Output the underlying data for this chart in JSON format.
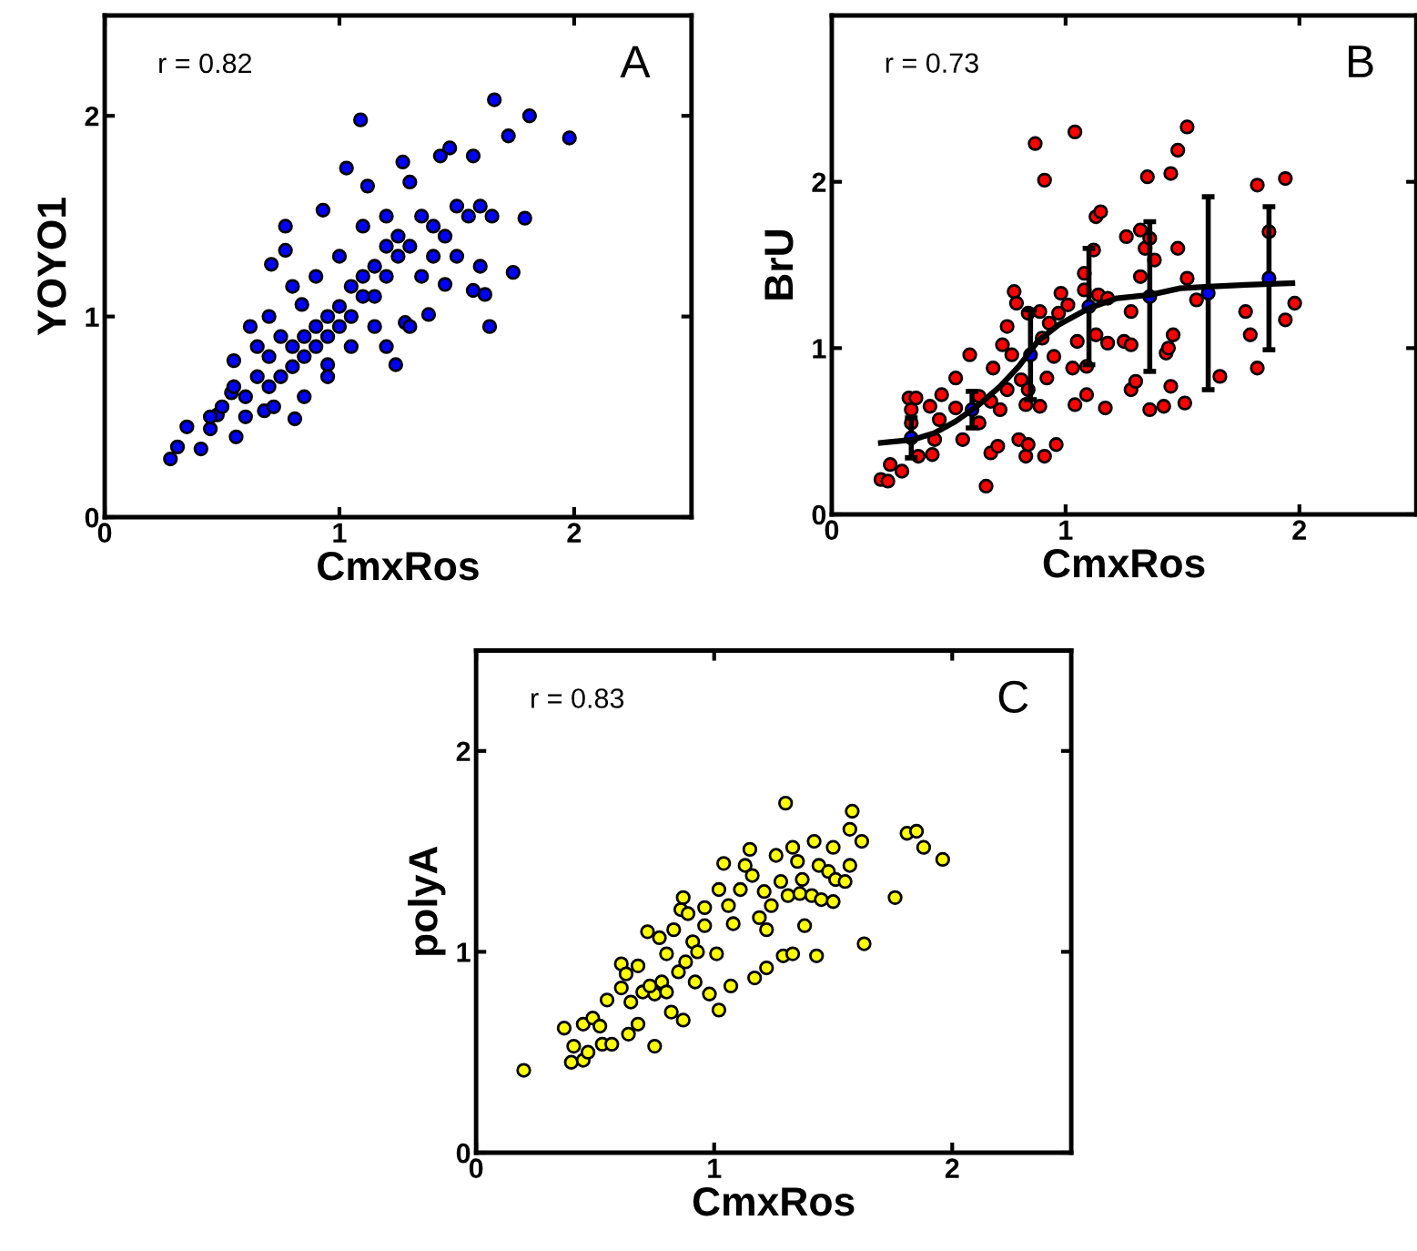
{
  "chart_data": [
    {
      "type": "scatter",
      "xlabel": "CmxRos",
      "ylabel": "YOYO1",
      "annotations": [
        "r = 0.82",
        "A"
      ],
      "xlim": [
        0,
        2.5
      ],
      "ylim": [
        0,
        2.5
      ],
      "xticks": [
        0,
        1,
        2
      ],
      "yticks": [
        0,
        1,
        2
      ],
      "grid": false,
      "marker": "circle",
      "series": [
        {
          "color": "#0000ff",
          "x": [
            0.28,
            0.31,
            0.35,
            0.41,
            0.48,
            0.54,
            0.55,
            0.62,
            0.71,
            0.77,
            0.77,
            0.84,
            0.93,
            1.09,
            1.03,
            1.12,
            1.27,
            1.3,
            1.43,
            1.47,
            1.57,
            1.66,
            1.72,
            1.81,
            1.98,
            1.79,
            1.74,
            1.64,
            1.62,
            1.57,
            1.45,
            1.24,
            1.28,
            1.38,
            0.95,
            0.81,
            0.68,
            0.56,
            0.45,
            0.6,
            0.65,
            0.7,
            0.7,
            0.75,
            0.75,
            0.8,
            0.8,
            0.85,
            0.85,
            0.9,
            0.9,
            0.95,
            0.95,
            1.0,
            1.0,
            1.05,
            1.05,
            1.1,
            1.1,
            1.15,
            1.15,
            1.2,
            1.2,
            1.25,
            1.25,
            1.3,
            1.35,
            1.4,
            1.4,
            1.45,
            1.5,
            1.55,
            1.6,
            1.65,
            1.0,
            0.9,
            0.8,
            0.7,
            0.65,
            0.55,
            0.5,
            0.45,
            0.95,
            1.05,
            1.15,
            1.3,
            1.2,
            0.6,
            0.72,
            0.85,
            1.1,
            1.2,
            1.35,
            1.5,
            1.6
          ],
          "values": [
            0.29,
            0.35,
            0.45,
            0.34,
            0.51,
            0.62,
            0.78,
            0.95,
            1.26,
            1.33,
            1.45,
            1.06,
            1.53,
            1.98,
            1.74,
            1.65,
            1.77,
            1.67,
            1.8,
            1.84,
            1.8,
            2.08,
            1.9,
            2.0,
            1.89,
            1.49,
            1.22,
            0.95,
            1.11,
            1.13,
            1.16,
            0.76,
            0.97,
            1.01,
            0.76,
            0.49,
            0.53,
            0.4,
            0.44,
            0.6,
            0.7,
            0.65,
            0.8,
            0.7,
            0.9,
            0.75,
            0.85,
            0.9,
            0.8,
            0.95,
            0.85,
            1.0,
            0.9,
            1.05,
            0.95,
            1.0,
            1.15,
            1.1,
            1.2,
            1.1,
            1.25,
            1.2,
            1.35,
            1.3,
            1.4,
            1.35,
            1.5,
            1.45,
            1.3,
            1.4,
            1.55,
            1.5,
            1.55,
            1.5,
            1.3,
            1.2,
            1.15,
            1.0,
            0.85,
            0.65,
            0.55,
            0.5,
            0.7,
            0.85,
            0.95,
            0.95,
            0.85,
            0.5,
            0.55,
            0.6,
            1.45,
            1.5,
            1.2,
            1.3,
            1.25
          ]
        }
      ]
    },
    {
      "type": "scatter",
      "xlabel": "CmxRos",
      "ylabel": "BrU",
      "annotations": [
        "r = 0.73",
        "B"
      ],
      "xlim": [
        0,
        2.5
      ],
      "ylim": [
        0,
        3
      ],
      "xticks": [
        0,
        1,
        2
      ],
      "yticks": [
        0,
        1,
        2
      ],
      "grid": false,
      "marker": "circle",
      "series": [
        {
          "color": "#ff0000",
          "x": [
            0.21,
            0.24,
            0.25,
            0.3,
            0.33,
            0.36,
            0.34,
            0.34,
            0.37,
            0.43,
            0.44,
            0.42,
            0.47,
            0.46,
            0.53,
            0.53,
            0.56,
            0.59,
            0.63,
            0.63,
            0.66,
            0.68,
            0.71,
            0.68,
            0.69,
            0.72,
            0.73,
            0.75,
            0.75,
            0.77,
            0.78,
            0.79,
            0.8,
            0.81,
            0.83,
            0.83,
            0.84,
            0.84,
            0.84,
            0.87,
            0.89,
            0.89,
            0.9,
            0.91,
            0.91,
            0.92,
            0.93,
            0.95,
            0.96,
            0.97,
            0.98,
            1.01,
            1.03,
            1.04,
            1.04,
            1.05,
            1.08,
            1.08,
            1.09,
            1.09,
            1.12,
            1.13,
            1.13,
            1.15,
            1.14,
            1.18,
            1.18,
            1.17,
            1.26,
            1.25,
            1.28,
            1.28,
            1.28,
            1.3,
            1.32,
            1.32,
            1.34,
            1.35,
            1.36,
            1.38,
            1.36,
            1.42,
            1.43,
            1.44,
            1.45,
            1.45,
            1.46,
            1.48,
            1.48,
            1.51,
            1.52,
            1.52,
            1.56,
            1.66,
            1.77,
            1.79,
            1.82,
            1.82,
            1.87,
            1.94,
            1.94,
            1.98
          ],
          "values": [
            0.21,
            0.2,
            0.3,
            0.26,
            0.7,
            0.7,
            0.63,
            0.55,
            0.35,
            0.36,
            0.45,
            0.65,
            0.72,
            0.57,
            0.64,
            0.82,
            0.45,
            0.96,
            0.71,
            0.55,
            0.17,
            0.37,
            0.41,
            0.68,
            0.88,
            0.63,
            1.02,
            0.75,
            1.13,
            0.96,
            1.34,
            1.27,
            0.45,
            0.81,
            0.66,
            0.35,
            0.42,
            0.75,
            1.21,
            2.23,
            0.65,
            1.22,
            1.06,
            2.01,
            0.35,
            0.82,
            1.15,
            0.95,
            0.42,
            1.21,
            1.33,
            1.26,
            0.88,
            0.66,
            2.3,
            1.04,
            1.45,
            1.35,
            0.72,
            0.89,
            1.59,
            1.08,
            1.79,
            1.82,
            1.32,
            1.3,
            1.03,
            0.64,
            1.67,
            1.04,
            1.02,
            1.22,
            0.75,
            0.8,
            1.71,
            1.43,
            1.6,
            2.03,
            1.66,
            1.53,
            0.63,
            0.65,
            0.97,
            1.0,
            2.05,
            0.77,
            1.08,
            2.19,
            1.6,
            0.67,
            2.33,
            1.42,
            1.29,
            0.83,
            1.22,
            1.08,
            0.88,
            1.98,
            1.7,
            2.02,
            1.17,
            1.27
          ]
        },
        {
          "color": "#0000ff",
          "x": [
            0.34,
            0.6,
            0.85,
            1.1,
            1.36,
            1.61,
            1.87
          ],
          "values": [
            0.46,
            0.63,
            0.96,
            1.25,
            1.31,
            1.33,
            1.42
          ],
          "errors": [
            0.12,
            0.11,
            0.27,
            0.35,
            0.45,
            0.58,
            0.43
          ]
        },
        {
          "type": "line",
          "marker": "none",
          "color": "#000000",
          "x": [
            0.21,
            0.35,
            0.44,
            0.53,
            0.63,
            0.72,
            0.8,
            0.88,
            0.97,
            1.1,
            1.22,
            1.36,
            1.49,
            1.61,
            1.77,
            1.97
          ],
          "values": [
            0.43,
            0.45,
            0.49,
            0.56,
            0.66,
            0.77,
            0.89,
            1.04,
            1.14,
            1.24,
            1.3,
            1.32,
            1.36,
            1.37,
            1.38,
            1.39
          ]
        }
      ]
    },
    {
      "type": "scatter",
      "xlabel": "CmxRos",
      "ylabel": "polyA",
      "annotations": [
        "r = 0.83",
        "C"
      ],
      "xlim": [
        0,
        2.5
      ],
      "ylim": [
        0,
        2.5
      ],
      "xticks": [
        0,
        1,
        2
      ],
      "yticks": [
        0,
        1,
        2
      ],
      "grid": false,
      "marker": "circle",
      "series": [
        {
          "color": "#ffff00",
          "x": [
            0.2,
            0.37,
            0.4,
            0.41,
            0.45,
            0.45,
            0.47,
            0.49,
            0.53,
            0.57,
            0.52,
            0.55,
            0.61,
            0.61,
            0.63,
            0.64,
            0.68,
            0.68,
            0.72,
            0.75,
            0.75,
            0.77,
            0.8,
            0.82,
            0.83,
            0.87,
            0.86,
            0.87,
            0.89,
            0.91,
            0.92,
            0.96,
            0.96,
            0.98,
            1.01,
            1.02,
            1.02,
            1.04,
            1.06,
            1.07,
            1.08,
            1.11,
            1.13,
            1.15,
            1.16,
            1.17,
            1.19,
            1.21,
            1.22,
            1.22,
            1.24,
            1.26,
            1.28,
            1.29,
            1.3,
            1.31,
            1.33,
            1.33,
            1.35,
            1.36,
            1.37,
            1.38,
            1.41,
            1.42,
            1.43,
            1.44,
            1.45,
            1.48,
            1.5,
            1.5,
            1.51,
            1.55,
            1.57,
            1.57,
            1.58,
            1.62,
            1.63,
            1.76,
            1.81,
            1.85,
            1.88,
            1.96,
            0.7,
            0.78,
            0.85,
            0.8,
            0.88,
            0.93,
            0.73,
            0.65
          ],
          "values": [
            0.41,
            0.62,
            0.45,
            0.53,
            0.64,
            0.46,
            0.5,
            0.67,
            0.54,
            0.54,
            0.63,
            0.76,
            0.82,
            0.94,
            0.89,
            0.59,
            0.64,
            0.93,
            1.1,
            0.53,
            0.79,
            1.07,
            0.99,
            0.7,
            1.11,
            1.27,
            1.21,
            0.66,
            1.19,
            1.05,
            0.85,
            1.22,
            1.13,
            0.79,
            0.99,
            0.71,
            1.31,
            1.44,
            1.23,
            0.83,
            1.14,
            1.31,
            1.43,
            1.51,
            1.38,
            0.87,
            1.17,
            1.3,
            0.92,
            1.11,
            1.23,
            1.48,
            1.35,
            0.98,
            1.74,
            1.28,
            1.52,
            0.99,
            1.45,
            1.29,
            1.36,
            1.13,
            1.28,
            1.55,
            0.98,
            1.43,
            1.26,
            1.4,
            1.52,
            1.25,
            1.36,
            1.35,
            1.61,
            1.43,
            1.7,
            1.55,
            1.04,
            1.27,
            1.59,
            1.6,
            1.52,
            1.46,
            0.8,
            0.85,
            0.9,
            0.8,
            0.95,
            1.0,
            0.83,
            0.75
          ]
        }
      ]
    }
  ]
}
